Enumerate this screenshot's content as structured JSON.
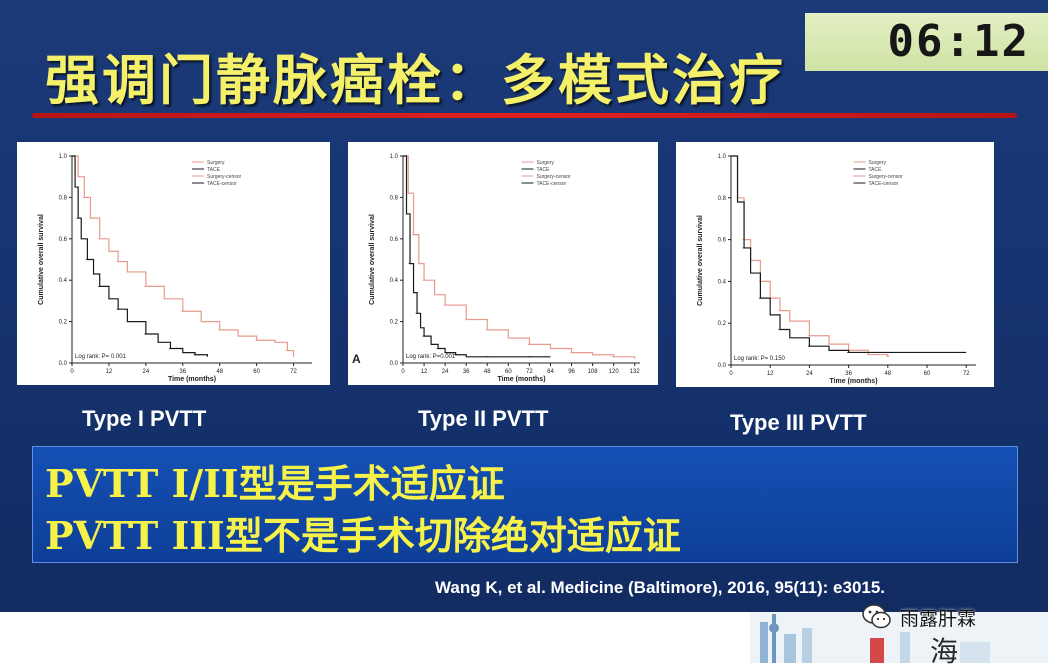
{
  "slide": {
    "title": "强调门静脉癌栓：多模式治疗",
    "timer": "06:12",
    "conclusion": [
      "PVTT I/II型是手术适应证",
      "PVTT III型不是手术切除绝对适应证"
    ],
    "citation": "Wang K, et al. Medicine (Baltimore), 2016, 95(11): e3015."
  },
  "watermark": {
    "text": "雨露肝霖",
    "icon": "wechat-icon",
    "corner_text": "海"
  },
  "colors": {
    "title": "#f5f06a",
    "title_rule": "#d41818",
    "surgery": "#e89a8e",
    "tace": "#1a1a1a"
  },
  "chart_data": [
    {
      "type": "line",
      "caption": "Type I PVTT",
      "panel_letter": "",
      "xlabel": "Time (months)",
      "ylabel": "Cumulative overall survival",
      "xticks": [
        0,
        12,
        24,
        36,
        48,
        60,
        72
      ],
      "yticks": [
        0.0,
        0.2,
        0.4,
        0.6,
        0.8,
        1.0
      ],
      "xlim": [
        0,
        78
      ],
      "ylim": [
        0,
        1
      ],
      "legend": [
        "Surgery",
        "TACE",
        "Surgery-censor",
        "TACE-censor"
      ],
      "annotation": "Log rank: P= 0.001",
      "series": [
        {
          "name": "Surgery",
          "color": "#e89a8e",
          "x": [
            0,
            2,
            4,
            6,
            9,
            12,
            15,
            18,
            24,
            30,
            36,
            42,
            48,
            54,
            60,
            66,
            70,
            72
          ],
          "y": [
            1.0,
            0.9,
            0.8,
            0.7,
            0.6,
            0.54,
            0.49,
            0.44,
            0.37,
            0.31,
            0.25,
            0.2,
            0.16,
            0.13,
            0.11,
            0.1,
            0.06,
            0.03
          ]
        },
        {
          "name": "TACE",
          "color": "#1a1a1a",
          "x": [
            0,
            1,
            2,
            3,
            5,
            7,
            9,
            12,
            15,
            18,
            24,
            28,
            32,
            36,
            40,
            44
          ],
          "y": [
            1.0,
            0.85,
            0.7,
            0.6,
            0.5,
            0.43,
            0.37,
            0.31,
            0.26,
            0.2,
            0.14,
            0.1,
            0.07,
            0.05,
            0.04,
            0.03
          ]
        }
      ]
    },
    {
      "type": "line",
      "caption": "Type II PVTT",
      "panel_letter": "A",
      "xlabel": "Time (months)",
      "ylabel": "Cumulative overall survival",
      "xticks": [
        0,
        12,
        24,
        36,
        48,
        60,
        72,
        84,
        96,
        108,
        120,
        132
      ],
      "yticks": [
        0.0,
        0.2,
        0.4,
        0.6,
        0.8,
        1.0
      ],
      "xlim": [
        0,
        135
      ],
      "ylim": [
        0,
        1
      ],
      "legend": [
        "Surgery",
        "TACE",
        "Surgery-censor",
        "TACE-censor"
      ],
      "annotation": "Log rank: P=0.001",
      "series": [
        {
          "name": "Surgery",
          "color": "#e89a8e",
          "x": [
            0,
            3,
            6,
            9,
            12,
            18,
            24,
            36,
            48,
            60,
            72,
            84,
            96,
            108,
            120,
            132
          ],
          "y": [
            1.0,
            0.82,
            0.62,
            0.48,
            0.4,
            0.33,
            0.28,
            0.21,
            0.16,
            0.12,
            0.09,
            0.07,
            0.05,
            0.04,
            0.03,
            0.02
          ]
        },
        {
          "name": "TACE",
          "color": "#1a1a1a",
          "x": [
            0,
            2,
            4,
            6,
            8,
            10,
            12,
            16,
            20,
            24,
            30,
            36,
            48,
            60,
            72,
            84
          ],
          "y": [
            1.0,
            0.72,
            0.48,
            0.34,
            0.24,
            0.17,
            0.13,
            0.09,
            0.07,
            0.05,
            0.04,
            0.03,
            0.03,
            0.03,
            0.03,
            0.03
          ]
        }
      ]
    },
    {
      "type": "line",
      "caption": "Type III PVTT",
      "panel_letter": "",
      "xlabel": "Time (months)",
      "ylabel": "Cumulative overall survival",
      "xticks": [
        0,
        12,
        24,
        36,
        48,
        60,
        72
      ],
      "yticks": [
        0.0,
        0.2,
        0.4,
        0.6,
        0.8,
        1.0
      ],
      "xlim": [
        0,
        75
      ],
      "ylim": [
        0,
        1
      ],
      "legend": [
        "Surgery",
        "TACE",
        "Surgery-censor",
        "TACE-censor"
      ],
      "annotation": "Log rank: P= 0.150",
      "series": [
        {
          "name": "Surgery",
          "color": "#e89a8e",
          "x": [
            0,
            2,
            4,
            6,
            9,
            12,
            15,
            18,
            24,
            30,
            36,
            42,
            48
          ],
          "y": [
            1.0,
            0.8,
            0.6,
            0.5,
            0.4,
            0.32,
            0.26,
            0.21,
            0.14,
            0.1,
            0.07,
            0.05,
            0.04
          ]
        },
        {
          "name": "TACE",
          "color": "#1a1a1a",
          "x": [
            0,
            2,
            4,
            6,
            9,
            12,
            15,
            18,
            24,
            30,
            36,
            48,
            60,
            72
          ],
          "y": [
            1.0,
            0.78,
            0.56,
            0.44,
            0.32,
            0.24,
            0.17,
            0.13,
            0.09,
            0.07,
            0.06,
            0.06,
            0.06,
            0.06
          ]
        }
      ]
    }
  ]
}
